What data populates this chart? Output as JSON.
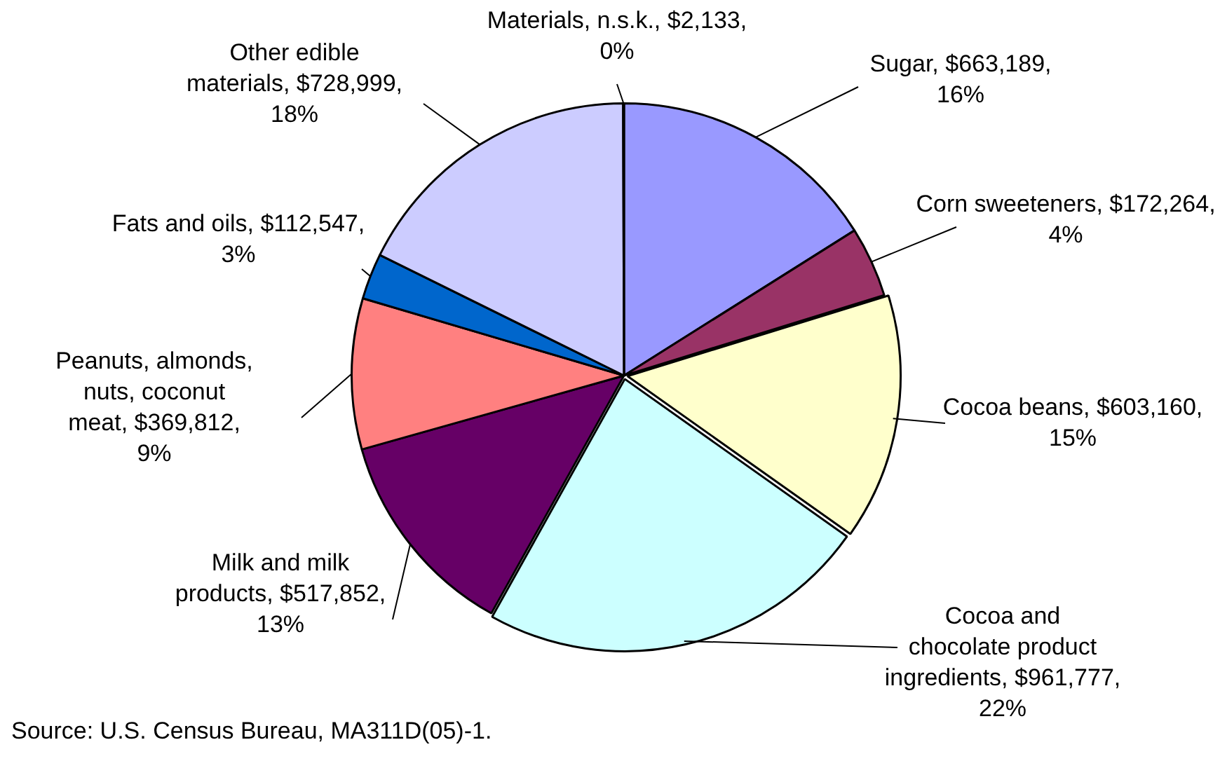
{
  "chart_data": {
    "type": "pie",
    "categories": [
      "Sugar",
      "Corn sweeteners",
      "Cocoa beans",
      "Cocoa and chocolate product ingredients",
      "Milk and milk products",
      "Peanuts, almonds, nuts, coconut meat",
      "Fats and oils",
      "Other edible materials",
      "Materials, n.s.k."
    ],
    "values": [
      663189,
      172264,
      603160,
      961777,
      517852,
      369812,
      112547,
      728999,
      2133
    ],
    "value_labels": [
      "$663,189, 16%",
      "$172,264, 4%",
      "$603,160, 15%",
      "$961,777, 22%",
      "$517,852, 13%",
      "$369,812, 9%",
      "$112,547, 3%",
      "$728,999, 18%",
      "$2,133, 0%"
    ],
    "colors": [
      "#9999ff",
      "#993366",
      "#ffffcc",
      "#ccffff",
      "#660066",
      "#ff8080",
      "#0066cc",
      "#ccccff",
      "#000080"
    ],
    "annotations": [
      "Source: U.S. Census Bureau, MA311D(05)-1."
    ]
  }
}
